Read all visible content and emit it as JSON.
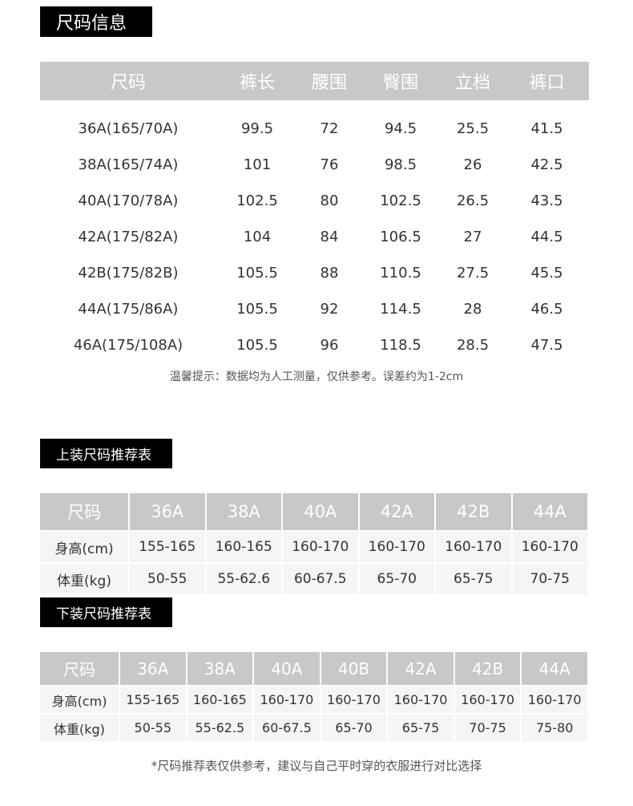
{
  "size_info": {
    "title": "尺码信息",
    "headers": [
      "尺码",
      "裤长",
      "腰围",
      "臀围",
      "立档",
      "裤口"
    ],
    "rows": [
      [
        "36A(165/70A)",
        "99.5",
        "72",
        "94.5",
        "25.5",
        "41.5"
      ],
      [
        "38A(165/74A)",
        "101",
        "76",
        "98.5",
        "26",
        "42.5"
      ],
      [
        "40A(170/78A)",
        "102.5",
        "80",
        "102.5",
        "26.5",
        "43.5"
      ],
      [
        "42A(175/82A)",
        "104",
        "84",
        "106.5",
        "27",
        "44.5"
      ],
      [
        "42B(175/82B)",
        "105.5",
        "88",
        "110.5",
        "27.5",
        "45.5"
      ],
      [
        "44A(175/86A)",
        "105.5",
        "92",
        "114.5",
        "28",
        "46.5"
      ],
      [
        "46A(175/108A)",
        "105.5",
        "96",
        "118.5",
        "28.5",
        "47.5"
      ]
    ],
    "note": "温馨提示：数据均为人工测量，仅供参考。误差约为1-2cm"
  },
  "top_recommend": {
    "title": "上装尺码推荐表",
    "headers": [
      "尺码",
      "36A",
      "38A",
      "40A",
      "42A",
      "42B",
      "44A"
    ],
    "rows": [
      [
        "身高(cm)",
        "155-165",
        "160-165",
        "160-170",
        "160-170",
        "160-170",
        "160-170"
      ],
      [
        "体重(kg)",
        "50-55",
        "55-62.6",
        "60-67.5",
        "65-70",
        "65-75",
        "70-75"
      ]
    ]
  },
  "bottom_recommend": {
    "title": "下装尺码推荐表",
    "headers": [
      "尺码",
      "36A",
      "38A",
      "40A",
      "40B",
      "42A",
      "42B",
      "44A"
    ],
    "rows": [
      [
        "身高(cm)",
        "155-165",
        "160-165",
        "160-170",
        "160-170",
        "160-170",
        "160-170",
        "160-170"
      ],
      [
        "体重(kg)",
        "50-55",
        "55-62.5",
        "60-67.5",
        "65-70",
        "65-75",
        "70-75",
        "75-80"
      ]
    ]
  },
  "footnote": "*尺码推荐表仅供参考，建议与自己平时穿的衣服进行对比选择"
}
